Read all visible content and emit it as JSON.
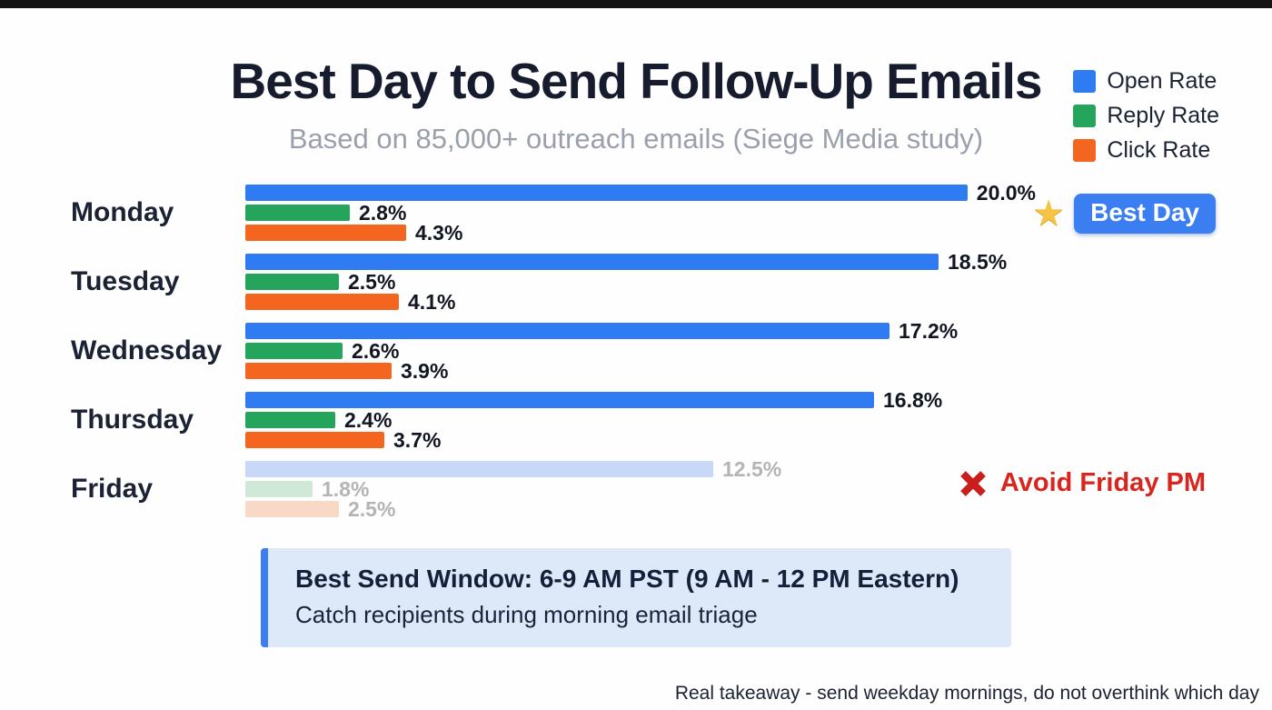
{
  "header": {
    "title": "Best Day to Send Follow-Up Emails",
    "subtitle": "Based on 85,000+ outreach emails (Siege Media study)"
  },
  "legend": [
    {
      "label": "Open Rate",
      "color": "#2f7bf2"
    },
    {
      "label": "Reply Rate",
      "color": "#25a55b"
    },
    {
      "label": "Click Rate",
      "color": "#f4661f"
    }
  ],
  "chart_data": {
    "type": "bar",
    "orientation": "horizontal",
    "title": "Best Day to Send Follow-Up Emails",
    "categories": [
      "Monday",
      "Tuesday",
      "Wednesday",
      "Thursday",
      "Friday"
    ],
    "series": [
      {
        "name": "Open Rate",
        "color": "#2f7bf2",
        "muted_color": "#c7d9f7",
        "values": [
          20.0,
          18.5,
          17.2,
          16.8,
          12.5
        ]
      },
      {
        "name": "Reply Rate",
        "color": "#25a55b",
        "muted_color": "#cfe8d8",
        "values": [
          2.8,
          2.5,
          2.6,
          2.4,
          1.8
        ]
      },
      {
        "name": "Click Rate",
        "color": "#f4661f",
        "muted_color": "#f9d9c6",
        "values": [
          4.3,
          4.1,
          3.9,
          3.7,
          2.5
        ]
      }
    ],
    "xlim": [
      0,
      20.5
    ],
    "grid": false,
    "legend_position": "top-right",
    "muted_category": "Friday",
    "muted_label_color": "#b4b4b4",
    "value_label_format": "one_decimal_percent"
  },
  "annotations": {
    "best_day": {
      "icon": "star-icon",
      "star_glyph": "★",
      "label": "Best Day",
      "applies_to": "Monday"
    },
    "avoid": {
      "icon": "x-icon",
      "label": "Avoid Friday PM",
      "applies_to": "Friday"
    }
  },
  "callout": {
    "title": "Best Send Window: 6-9 AM PST (9 AM - 12 PM Eastern)",
    "subtitle": "Catch recipients during morning email triage"
  },
  "footer": {
    "note": "Real takeaway - send weekday mornings, do not overthink which day"
  }
}
